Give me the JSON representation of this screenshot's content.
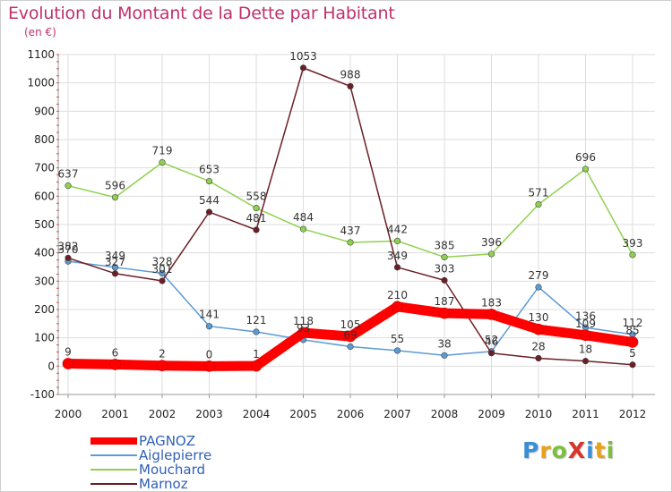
{
  "page": {
    "title": "Evolution du Montant de la Dette par Habitant",
    "subtitle": "(en €)",
    "logo": "ProXiti"
  },
  "colors": {
    "title": "#c0306a",
    "axis_text": "#222222",
    "grid": "#dddddd",
    "legend_text": "#2f5fb8"
  },
  "chart_data": {
    "type": "line",
    "title": "Evolution du Montant de la Dette par Habitant",
    "subtitle": "(en €)",
    "xlabel": "",
    "ylabel": "",
    "ylim": [
      -100,
      1100
    ],
    "yticks": [
      -100,
      0,
      100,
      200,
      300,
      400,
      500,
      600,
      700,
      800,
      900,
      1000,
      1100
    ],
    "grid": true,
    "legend_position": "bottom-left",
    "x": [
      "2000",
      "2001",
      "2002",
      "2003",
      "2004",
      "2005",
      "2006",
      "2007",
      "2008",
      "2009",
      "2010",
      "2011",
      "2012"
    ],
    "series": [
      {
        "name": "PAGNOZ",
        "color": "#ff0000",
        "values": [
          9,
          6,
          2,
          0,
          1,
          118,
          105,
          210,
          187,
          183,
          130,
          109,
          85
        ],
        "labels": [
          "9",
          "6",
          "2",
          "0",
          "1",
          "118",
          "105",
          "210",
          "187",
          "183",
          "130",
          "109",
          "85"
        ]
      },
      {
        "name": "Aiglepierre",
        "color": "#5b9bd5",
        "values": [
          370,
          349,
          328,
          141,
          121,
          93,
          69,
          55,
          38,
          52,
          279,
          136,
          112
        ],
        "labels": [
          "370",
          "349",
          "328",
          "141",
          "121",
          "93",
          "69",
          "55",
          "38",
          "52",
          "279",
          "136",
          "112"
        ]
      },
      {
        "name": "Mouchard",
        "color": "#8fd14f",
        "values": [
          637,
          596,
          719,
          653,
          558,
          484,
          437,
          442,
          385,
          396,
          571,
          696,
          393
        ],
        "labels": [
          "637",
          "596",
          "719",
          "653",
          "558",
          "484",
          "437",
          "442",
          "385",
          "396",
          "571",
          "696",
          "393"
        ]
      },
      {
        "name": "Marnoz",
        "color": "#6b1f25",
        "values": [
          382,
          327,
          301,
          544,
          481,
          1053,
          988,
          349,
          303,
          46,
          28,
          18,
          5
        ],
        "labels": [
          "382",
          "327",
          "301",
          "544",
          "481",
          "1053",
          "988",
          "349",
          "303",
          "46",
          "28",
          "18",
          "5"
        ]
      }
    ]
  }
}
